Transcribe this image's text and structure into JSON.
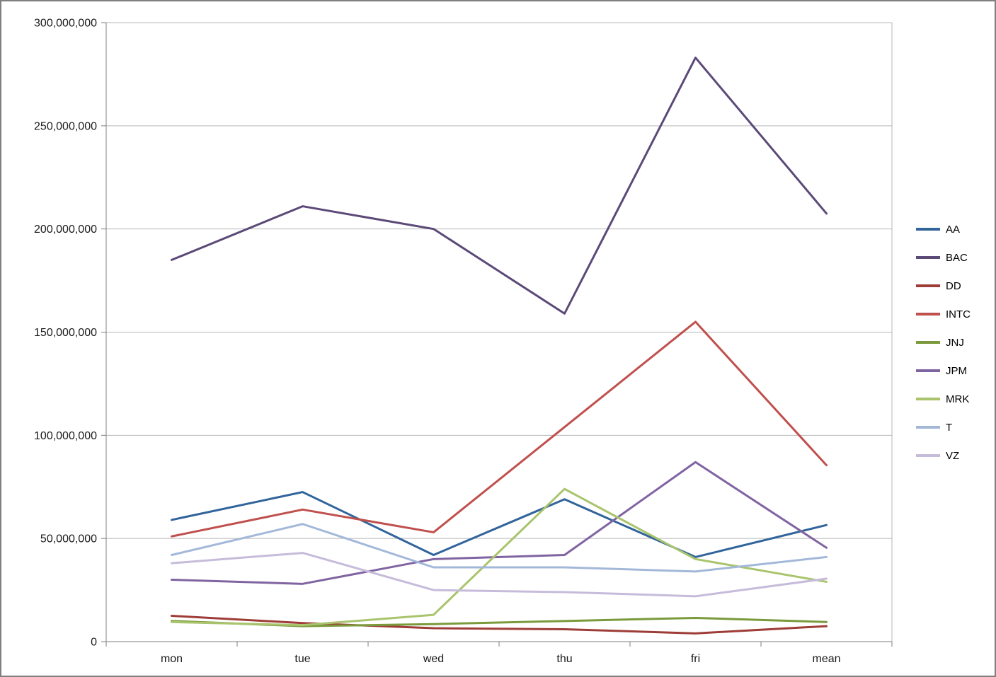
{
  "chart_data": {
    "type": "line",
    "title": "",
    "xlabel": "",
    "ylabel": "",
    "categories": [
      "mon",
      "tue",
      "wed",
      "thu",
      "fri",
      "mean"
    ],
    "series": [
      {
        "name": "AA",
        "color": "#31649B",
        "values": [
          59000000,
          72500000,
          42000000,
          69000000,
          41000000,
          56500000
        ]
      },
      {
        "name": "BAC",
        "color": "#5B4A78",
        "values": [
          185000000,
          211000000,
          200000000,
          159000000,
          283000000,
          207500000
        ]
      },
      {
        "name": "DD",
        "color": "#9E3D38",
        "values": [
          12500000,
          9000000,
          6500000,
          6000000,
          4000000,
          7500000
        ]
      },
      {
        "name": "INTC",
        "color": "#C0504D",
        "values": [
          51000000,
          64000000,
          53000000,
          104000000,
          155000000,
          85500000
        ]
      },
      {
        "name": "JNJ",
        "color": "#7A9A3C",
        "values": [
          10000000,
          7500000,
          8500000,
          10000000,
          11500000,
          9500000
        ]
      },
      {
        "name": "JPM",
        "color": "#8064A2",
        "values": [
          30000000,
          28000000,
          40000000,
          42000000,
          87000000,
          45500000
        ]
      },
      {
        "name": "MRK",
        "color": "#A9C46D",
        "values": [
          9500000,
          8000000,
          13000000,
          74000000,
          40000000,
          29000000
        ]
      },
      {
        "name": "T",
        "color": "#A3B8D9",
        "values": [
          42000000,
          57000000,
          36000000,
          36000000,
          34000000,
          41000000
        ]
      },
      {
        "name": "VZ",
        "color": "#C6BCDA",
        "values": [
          38000000,
          43000000,
          25000000,
          24000000,
          22000000,
          30500000
        ]
      }
    ],
    "ylim": [
      0,
      300000000
    ],
    "ytick_step": 50000000,
    "grid": true,
    "legend_position": "right"
  },
  "axes": {
    "y_tick_labels": [
      "300,000,000",
      "250,000,000",
      "200,000,000",
      "150,000,000",
      "100,000,000",
      "50,000,000",
      "0"
    ],
    "x_tick_labels": [
      "mon",
      "tue",
      "wed",
      "thu",
      "fri",
      "mean"
    ]
  },
  "style": {
    "gridline_color": "#B7B7B7",
    "axis_color": "#7F7F7F",
    "label_color": "#1A1A1A",
    "background": "#FFFFFF",
    "frame_border": "#7F7F7F"
  }
}
